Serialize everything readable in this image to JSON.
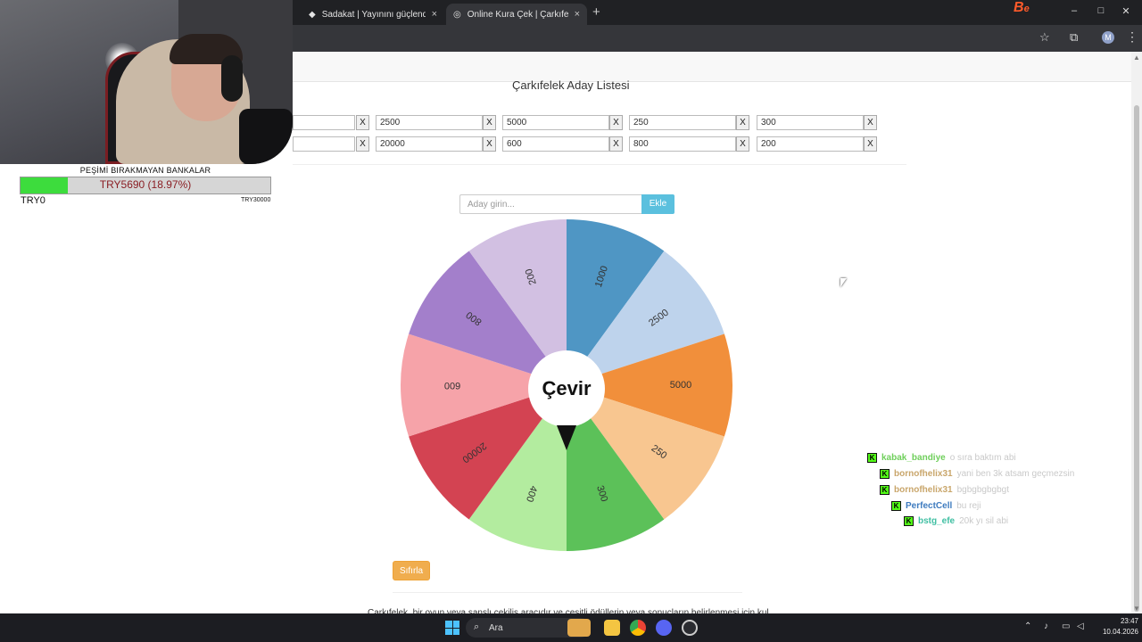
{
  "browser": {
    "tabs": [
      {
        "title": "",
        "close": "×"
      },
      {
        "title": "Sadakat | Yayınını güçlendirmek",
        "close": "×"
      },
      {
        "title": "Online Kura Çek | Çarkıfelek",
        "close": "×"
      }
    ],
    "new_tab": "+",
    "window": {
      "minimize": "–",
      "maximize": "□",
      "close": "✕"
    },
    "profile_initial": "M",
    "menu": "⋮"
  },
  "page": {
    "list_title": "Çarkıfelek Aday Listesi",
    "entries": [
      "",
      "2500",
      "5000",
      "250",
      "300",
      "",
      "20000",
      "600",
      "800",
      "200"
    ],
    "remove_label": "X",
    "input_placeholder": "Aday girin...",
    "add_button": "Ekle",
    "spin_button": "Çevir",
    "reset_button": "Sıfırla",
    "footer_text": "Çarkıfelek, bir oyun veya şanslı çekiliş aracıdır ve çeşitli ödüllerin veya sonuçların belirlenmesi için kullanılır."
  },
  "wheel": {
    "segments": [
      {
        "label": "1000",
        "color": "#4f96c4"
      },
      {
        "label": "2500",
        "color": "#bed3ec"
      },
      {
        "label": "5000",
        "color": "#f18f3b"
      },
      {
        "label": "250",
        "color": "#f8c690"
      },
      {
        "label": "300",
        "color": "#5cc159"
      },
      {
        "label": "400",
        "color": "#b3ec9f"
      },
      {
        "label": "20000",
        "color": "#d34352"
      },
      {
        "label": "600",
        "color": "#f6a3a9"
      },
      {
        "label": "800",
        "color": "#a37fcb"
      },
      {
        "label": "200",
        "color": "#d2c0e2"
      }
    ]
  },
  "overlay": {
    "goal_title": "PEŞİMİ BIRAKMAYAN BANKALAR",
    "goal_current": "TRY5690 (18.97%)",
    "goal_fraction": 0.1897,
    "goal_min": "TRY0",
    "goal_max": "TRY30000",
    "brand_logo": "Be"
  },
  "chat": [
    {
      "user": "kabak_bandiye",
      "message": "o sıra baktım abi",
      "color": "#6fcf5b"
    },
    {
      "user": "bornofhelix31",
      "message": "yani ben 3k atsam geçmezsin",
      "color": "#c9a66b"
    },
    {
      "user": "bornofhelix31",
      "message": "bgbgbgbgbgt",
      "color": "#c9a66b"
    },
    {
      "user": "PerfectCell",
      "message": "bu reji",
      "color": "#3e7bbf"
    },
    {
      "user": "bstg_efe",
      "message": "20k yı sil abi",
      "color": "#3fbfa2"
    }
  ],
  "taskbar": {
    "search_label": "Ara",
    "search_icon": "search-icon",
    "time": "23:47",
    "date": "10.04.2026"
  }
}
